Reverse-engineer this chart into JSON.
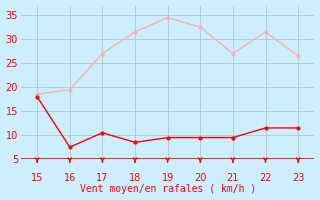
{
  "x": [
    15,
    16,
    17,
    18,
    19,
    20,
    21,
    22,
    23
  ],
  "wind_avg": [
    18,
    7.5,
    10.5,
    8.5,
    9.5,
    9.5,
    9.5,
    11.5,
    11.5
  ],
  "wind_gust": [
    18.5,
    19.5,
    27,
    31.5,
    34.5,
    32.5,
    27,
    31.5,
    26.5
  ],
  "avg_color": "#ff0000",
  "gust_color": "#ffb0b0",
  "bg_color": "#cceeff",
  "grid_color": "#aacccc",
  "axis_line_color": "#ff0000",
  "xlabel": "Vent moyen/en rafales ( km/h )",
  "xlabel_color": "#ff0000",
  "tick_label_color": "#ff0000",
  "arrow_color": "#ff0000",
  "ylim": [
    5,
    37
  ],
  "yticks": [
    5,
    10,
    15,
    20,
    25,
    30,
    35
  ],
  "xlim": [
    14.5,
    23.5
  ],
  "xticks": [
    15,
    16,
    17,
    18,
    19,
    20,
    21,
    22,
    23
  ]
}
